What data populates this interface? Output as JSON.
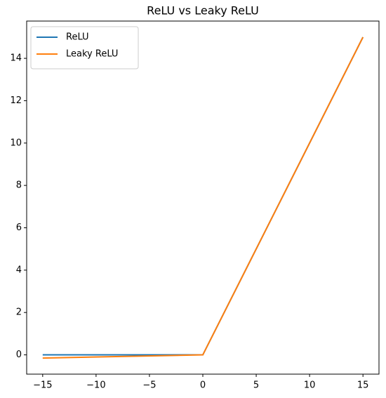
{
  "chart_data": {
    "type": "line",
    "title": "ReLU vs Leaky ReLU",
    "x": [
      -15,
      0,
      15
    ],
    "series": [
      {
        "name": "ReLU",
        "color": "#1f77b4",
        "values": [
          0,
          0,
          15
        ]
      },
      {
        "name": "Leaky ReLU",
        "color": "#ff7f0e",
        "values": [
          -0.15,
          0,
          15
        ]
      }
    ],
    "xlim": [
      -16.5,
      16.5
    ],
    "ylim": [
      -0.91,
      15.76
    ],
    "xticks": [
      {
        "value": -15,
        "label": "−15"
      },
      {
        "value": -10,
        "label": "−10"
      },
      {
        "value": -5,
        "label": "−5"
      },
      0,
      5,
      10,
      15
    ],
    "yticks": [
      0,
      2,
      4,
      6,
      8,
      10,
      12,
      14
    ],
    "legend": "upper left"
  }
}
